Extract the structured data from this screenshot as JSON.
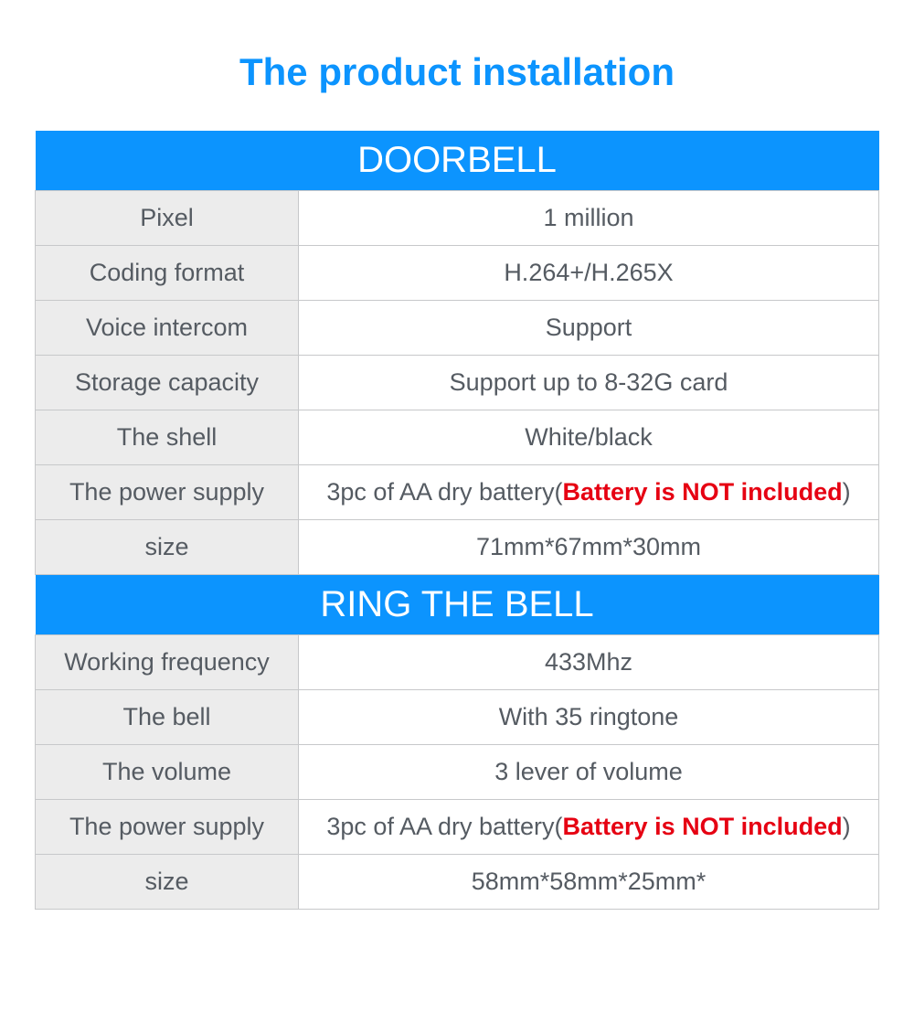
{
  "colors": {
    "title": "#0c94fe",
    "header_bg": "#0c94fe",
    "header_text": "#ffffff",
    "border": "#c7c8ca",
    "label_bg": "#ececec",
    "value_bg": "#ffffff",
    "text": "#555b62",
    "warn": "#e60012"
  },
  "title": "The product installation",
  "sections": [
    {
      "header": "DOORBELL",
      "rows": [
        {
          "label": "Pixel",
          "value": "1 million"
        },
        {
          "label": "Coding format",
          "value": "H.264+/H.265X"
        },
        {
          "label": "Voice intercom",
          "value": "Support"
        },
        {
          "label": "Storage capacity",
          "value": "Support up to 8-32G card"
        },
        {
          "label": "The shell",
          "value": "White/black"
        },
        {
          "label": "The power supply",
          "value_prefix": "3pc of AA dry battery(",
          "value_warn": "Battery is NOT included",
          "value_suffix": ")"
        },
        {
          "label": "size",
          "value": "71mm*67mm*30mm"
        }
      ]
    },
    {
      "header": "RING THE BELL",
      "rows": [
        {
          "label": "Working frequency",
          "value": "433Mhz"
        },
        {
          "label": "The bell",
          "value": "With 35 ringtone"
        },
        {
          "label": "The volume",
          "value": "3 lever of volume"
        },
        {
          "label": "The power supply",
          "value_prefix": "3pc of AA dry battery(",
          "value_warn": "Battery is NOT included",
          "value_suffix": ")"
        },
        {
          "label": "size",
          "value": "58mm*58mm*25mm*"
        }
      ]
    }
  ]
}
